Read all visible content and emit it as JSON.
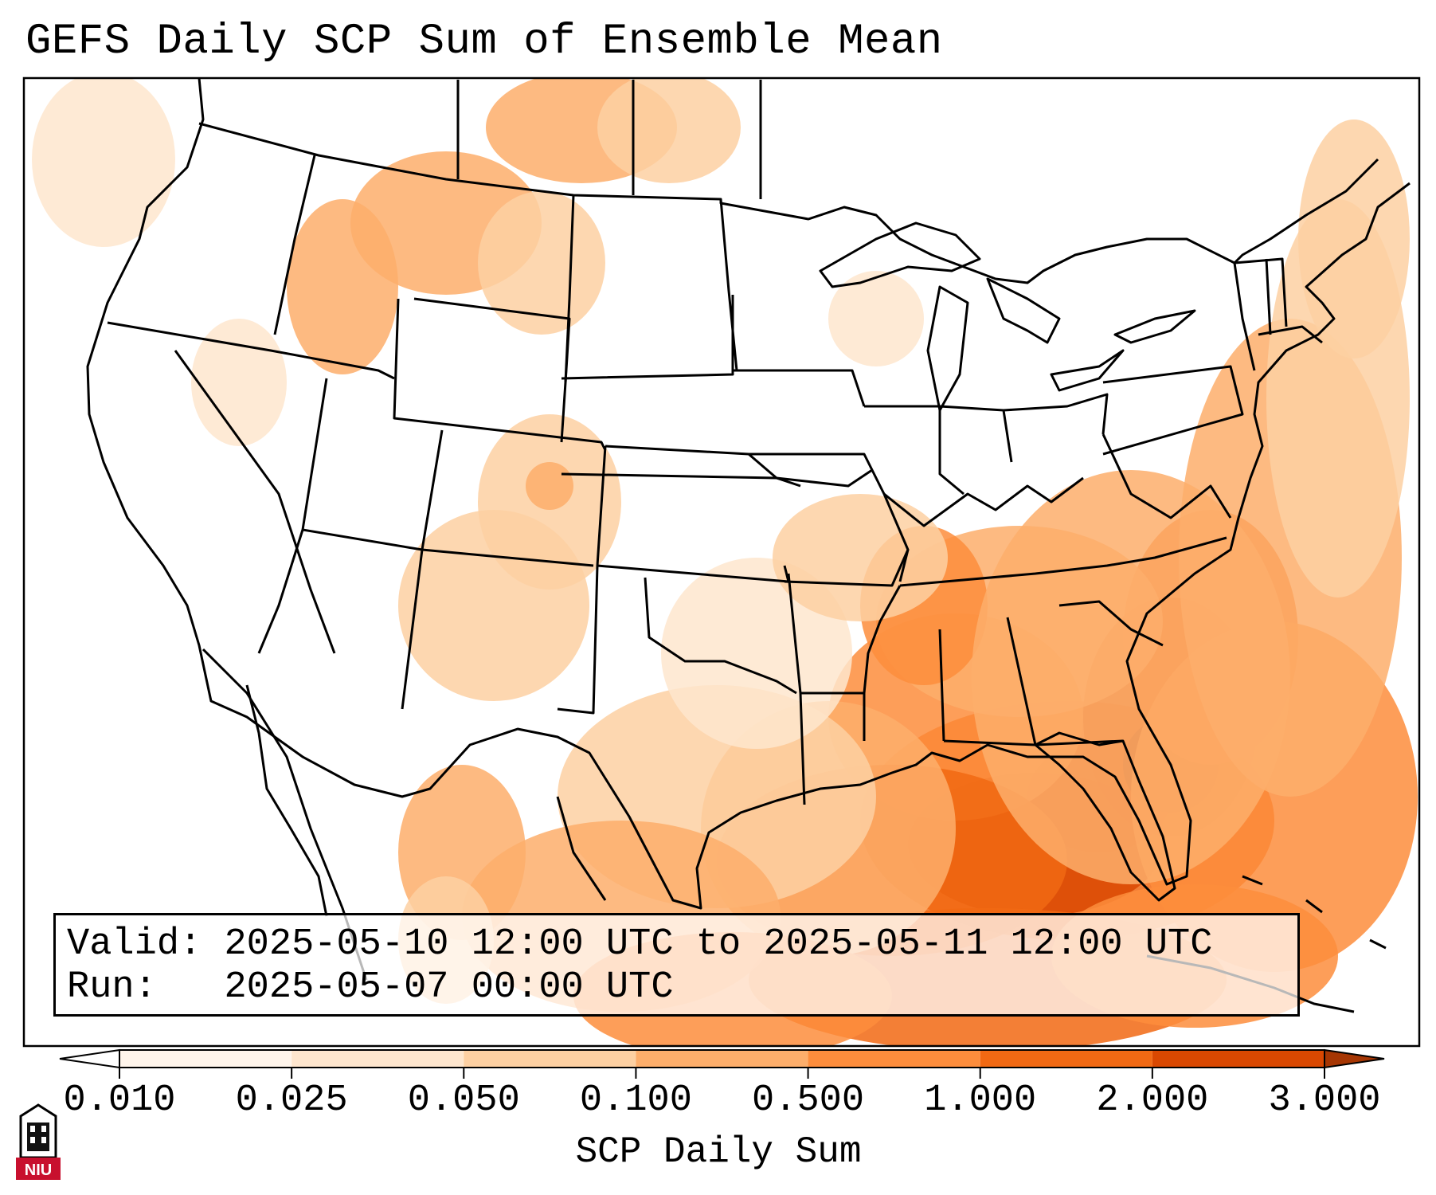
{
  "title": "GEFS Daily SCP Sum of Ensemble Mean",
  "info": {
    "valid_label": "Valid:",
    "valid_text": "2025-05-10 12:00 UTC to 2025-05-11 12:00 UTC",
    "run_label": "Run:",
    "run_text": "2025-05-07 00:00 UTC"
  },
  "colorbar": {
    "label": "SCP Daily Sum",
    "ticks": [
      "0.010",
      "0.025",
      "0.050",
      "0.100",
      "0.500",
      "1.000",
      "2.000",
      "3.000"
    ],
    "colors": [
      "#fff5eb",
      "#fee6ce",
      "#fdd0a2",
      "#fdae6b",
      "#fd8d3c",
      "#f16913",
      "#d94801",
      "#a63603"
    ]
  },
  "logo": {
    "text": "NIU",
    "color": "#c8102e"
  }
}
